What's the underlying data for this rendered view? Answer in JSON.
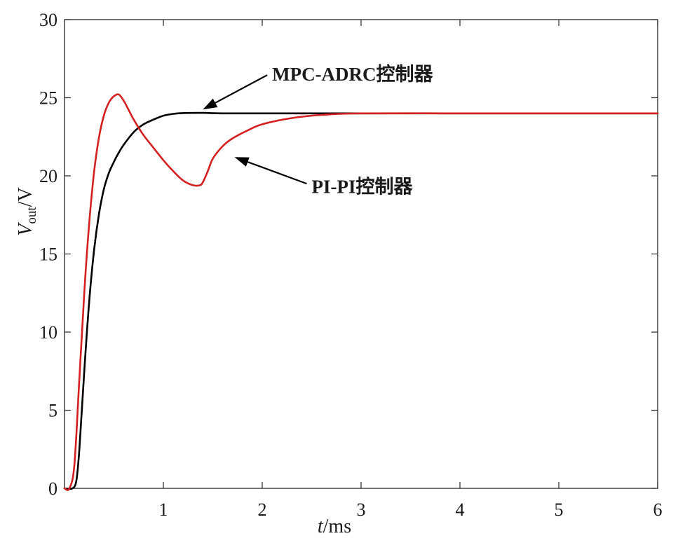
{
  "chart_data": {
    "type": "line",
    "title": "",
    "xlabel": {
      "italic": "t",
      "rest": "/ms"
    },
    "ylabel": {
      "italic": "V",
      "sub": "out",
      "rest": "/V"
    },
    "xlim": [
      0,
      6
    ],
    "ylim": [
      0,
      30
    ],
    "xticks": [
      1,
      2,
      3,
      4,
      5,
      6
    ],
    "yticks": [
      0,
      5,
      10,
      15,
      20,
      25,
      30
    ],
    "grid": false,
    "series": [
      {
        "annotation": "MPC-ADRC控制器",
        "color": "#000000",
        "x": [
          0,
          0.08,
          0.12,
          0.15,
          0.2,
          0.25,
          0.3,
          0.35,
          0.4,
          0.45,
          0.5,
          0.55,
          0.6,
          0.7,
          0.8,
          0.9,
          1.0,
          1.1,
          1.2,
          1.4,
          1.6,
          2.0,
          2.5,
          3.0,
          4.0,
          5.0,
          6.0
        ],
        "y": [
          0,
          0,
          0.5,
          2.5,
          7.5,
          12.0,
          15.3,
          17.6,
          19.2,
          20.2,
          20.9,
          21.5,
          22.0,
          22.8,
          23.3,
          23.6,
          23.85,
          23.97,
          24.02,
          24.03,
          24.0,
          24.0,
          24.0,
          24.0,
          24.0,
          24.0,
          24.0
        ]
      },
      {
        "annotation": "PI-PI控制器",
        "color": "#d42020",
        "x": [
          0,
          0.05,
          0.1,
          0.15,
          0.2,
          0.25,
          0.3,
          0.35,
          0.4,
          0.45,
          0.5,
          0.55,
          0.6,
          0.65,
          0.7,
          0.8,
          0.9,
          1.0,
          1.1,
          1.2,
          1.3,
          1.37,
          1.4,
          1.45,
          1.5,
          1.6,
          1.7,
          1.85,
          2.0,
          2.3,
          2.6,
          3.0,
          4.0,
          5.0,
          6.0
        ],
        "y": [
          0,
          0,
          1.5,
          7.0,
          12.5,
          17.0,
          20.3,
          22.5,
          23.9,
          24.7,
          25.1,
          25.2,
          24.8,
          24.2,
          23.6,
          22.6,
          21.8,
          21.0,
          20.3,
          19.7,
          19.4,
          19.4,
          19.6,
          20.3,
          21.1,
          21.9,
          22.4,
          22.9,
          23.3,
          23.7,
          23.9,
          24.0,
          24.0,
          24.0,
          24.0
        ]
      }
    ],
    "arrows": [
      {
        "from": [
          2.05,
          26.45
        ],
        "to": [
          1.4,
          24.25
        ]
      },
      {
        "from": [
          2.45,
          19.5
        ],
        "to": [
          1.72,
          21.2
        ]
      }
    ],
    "annotation_anchor": [
      {
        "x": 2.1,
        "y": 26.5
      },
      {
        "x": 2.5,
        "y": 19.3
      }
    ]
  }
}
